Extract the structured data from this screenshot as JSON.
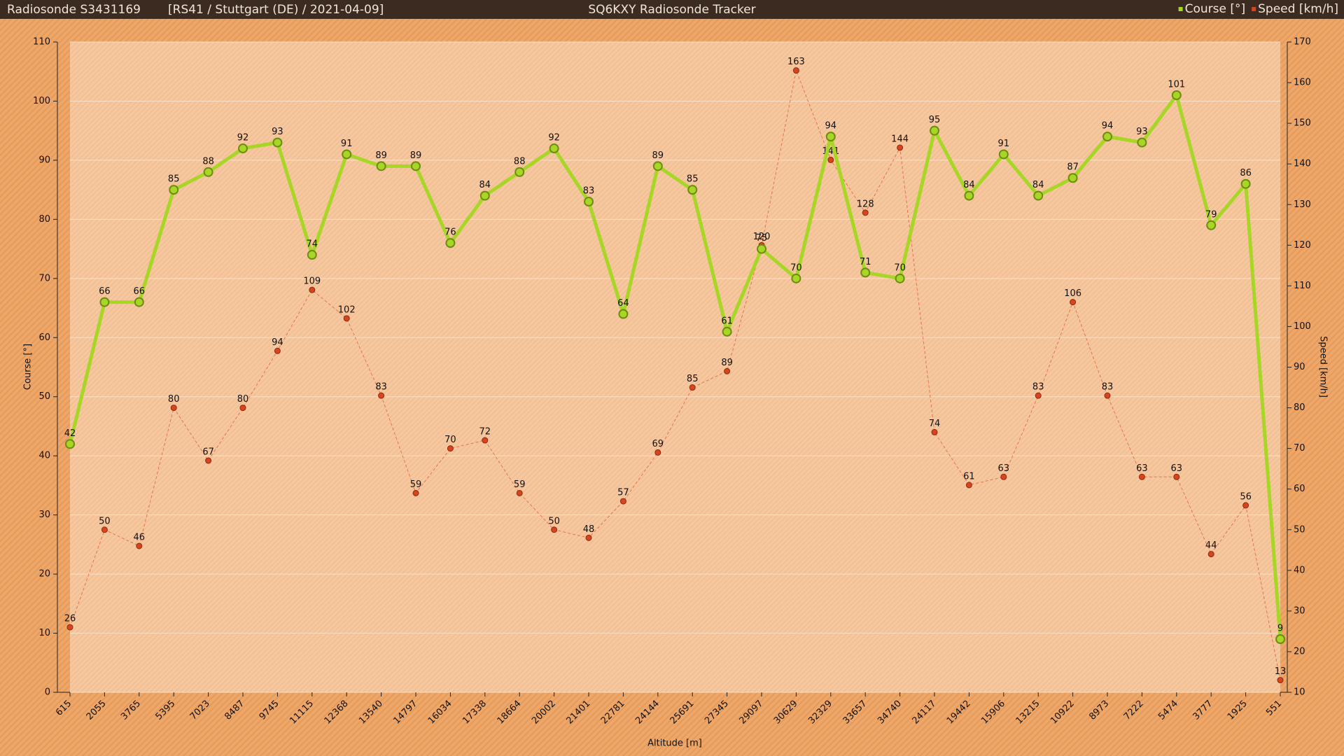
{
  "chart_data": {
    "type": "line",
    "title": "SQ6KXY Radiosonde Tracker",
    "sonde": "Radiosonde S3431169",
    "flight": "[RS41 / Stuttgart (DE) / 2021-04-09]",
    "xlabel": "Altitude [m]",
    "ylabel": "Course [°]",
    "y2label": "Speed [km/h]",
    "legend": "top-right",
    "grid": true,
    "categories": [
      "615",
      "2055",
      "3765",
      "5395",
      "7023",
      "8487",
      "9745",
      "11115",
      "12368",
      "13540",
      "14797",
      "16034",
      "17338",
      "18664",
      "20002",
      "21401",
      "22781",
      "24144",
      "25691",
      "27345",
      "29097",
      "30629",
      "32329",
      "33657",
      "34740",
      "24117",
      "19442",
      "15906",
      "13215",
      "10922",
      "8973",
      "7222",
      "5474",
      "3777",
      "1925",
      "551"
    ],
    "series": [
      {
        "name": "Course [°]",
        "color": "#a8d626",
        "values": [
          42,
          66,
          66,
          85,
          88,
          92,
          93,
          74,
          91,
          89,
          89,
          76,
          84,
          88,
          92,
          83,
          64,
          89,
          85,
          61,
          75,
          70,
          94,
          71,
          70,
          95,
          84,
          91,
          84,
          87,
          94,
          93,
          101,
          79,
          86,
          9
        ]
      },
      {
        "name": "Speed [km/h]",
        "color": "#d9441c",
        "axis": "y2",
        "values": [
          26,
          50,
          46,
          80,
          67,
          80,
          94,
          109,
          102,
          83,
          59,
          70,
          72,
          59,
          50,
          48,
          57,
          69,
          85,
          89,
          120,
          163,
          141,
          128,
          144,
          74,
          61,
          63,
          83,
          106,
          83,
          63,
          63,
          44,
          56,
          13
        ]
      }
    ],
    "ylim": [
      0,
      110
    ],
    "yticks": [
      0,
      10,
      20,
      30,
      40,
      50,
      60,
      70,
      80,
      90,
      100,
      110
    ],
    "y2lim": [
      10,
      170
    ],
    "y2ticks": [
      10,
      20,
      30,
      40,
      50,
      60,
      70,
      80,
      90,
      100,
      110,
      120,
      130,
      140,
      150,
      160,
      170
    ]
  }
}
